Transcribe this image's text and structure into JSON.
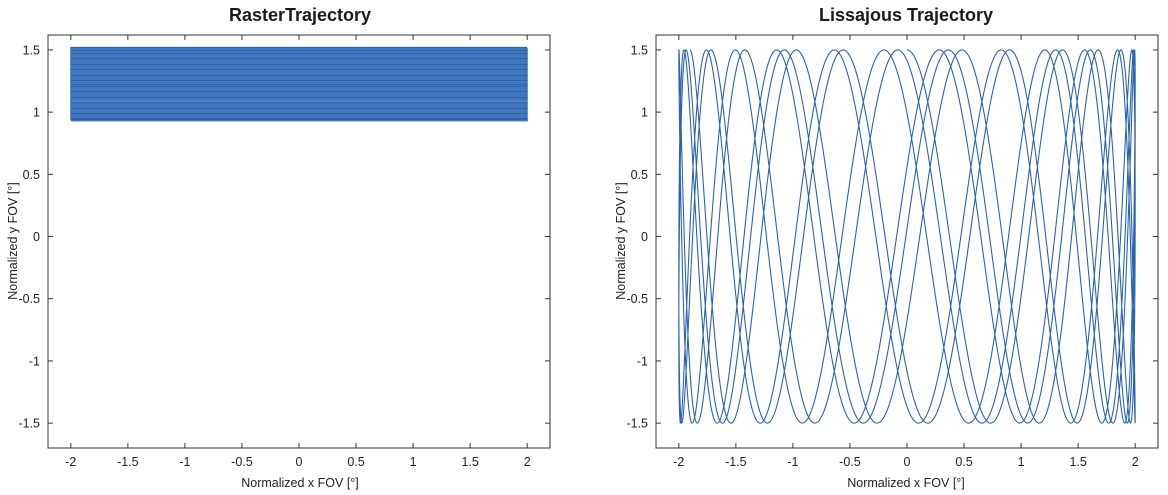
{
  "colors": {
    "trace": "#2a63b2",
    "axis": "#333333",
    "background": "#ffffff"
  },
  "chart_data": [
    {
      "type": "line",
      "title": "RasterTrajectory",
      "xlabel": "Normalized  x FOV [°]",
      "ylabel": "Normalized y FOV [°]",
      "xlim": [
        -2.2,
        2.2
      ],
      "ylim": [
        -1.7,
        1.62
      ],
      "xticks": [
        -2,
        -1.5,
        -1,
        -0.5,
        0,
        0.5,
        1,
        1.5,
        2
      ],
      "xtick_labels": [
        "-2",
        "-1.5",
        "-1",
        "-0.5",
        "0",
        "0.5",
        "1",
        "1.5",
        "2"
      ],
      "yticks": [
        -1.5,
        -1,
        -0.5,
        0,
        0.5,
        1,
        1.5
      ],
      "ytick_labels": [
        "-1.5",
        "-1",
        "-0.5",
        "0",
        "0.5",
        "1",
        "1.5"
      ],
      "grid": false,
      "series": [
        {
          "pattern": "raster",
          "x_range": [
            -2,
            2
          ],
          "y_range": [
            0.93,
            1.52
          ],
          "lines": 60
        }
      ]
    },
    {
      "type": "line",
      "title": "Lissajous Trajectory",
      "xlabel": "Normalized x FOV [°]",
      "ylabel": "Normalized y FOV [°]",
      "xlim": [
        -2.2,
        2.2
      ],
      "ylim": [
        -1.7,
        1.62
      ],
      "xticks": [
        -2,
        -1.5,
        -1,
        -0.5,
        0,
        0.5,
        1,
        1.5,
        2
      ],
      "xtick_labels": [
        "-2",
        "-1.5",
        "-1",
        "-0.5",
        "0",
        "0.5",
        "1",
        "1.5",
        "2"
      ],
      "yticks": [
        -1.5,
        -1,
        -0.5,
        0,
        0.5,
        1,
        1.5
      ],
      "ytick_labels": [
        "-1.5",
        "-1",
        "-0.5",
        "0",
        "0.5",
        "1",
        "1.5"
      ],
      "grid": false,
      "series": [
        {
          "pattern": "lissajous",
          "x_amplitude": 2,
          "y_amplitude": 1.5,
          "x_frequency": 1,
          "y_frequency": 31,
          "phase_drift": 0.7
        }
      ]
    }
  ]
}
